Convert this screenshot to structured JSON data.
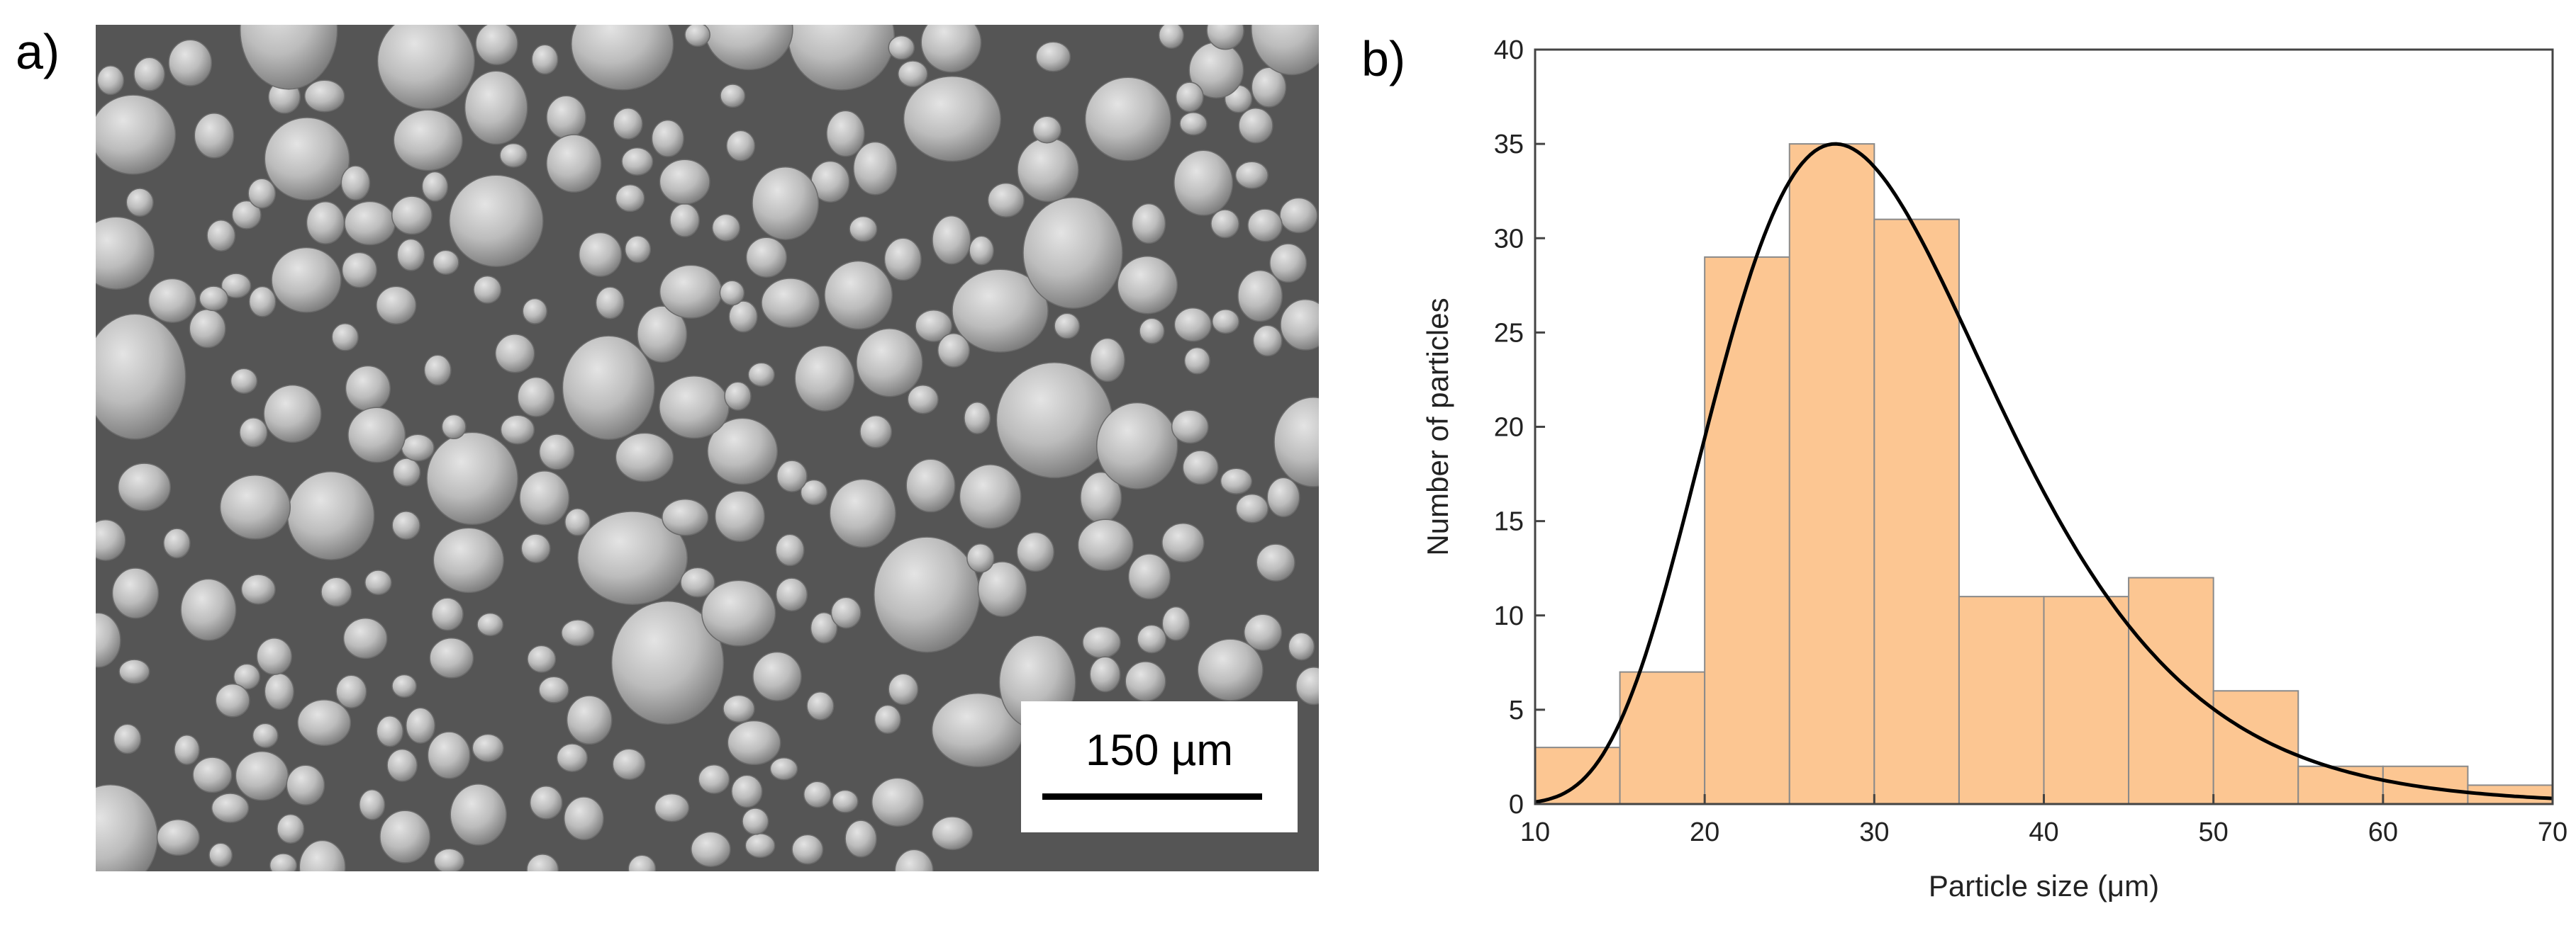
{
  "panels": {
    "a_label": "a)",
    "b_label": "b)"
  },
  "sem": {
    "scale_bar_label": "150 µm",
    "background_color": "#555555",
    "particle_color": "#c8c8c8"
  },
  "chart_data": {
    "type": "bar",
    "title": "",
    "xlabel": "Particle size (μm)",
    "ylabel": "Number of particles",
    "xlim": [
      10,
      70
    ],
    "ylim": [
      0,
      40
    ],
    "x_ticks": [
      10,
      20,
      30,
      40,
      50,
      60,
      70
    ],
    "y_ticks": [
      0,
      5,
      10,
      15,
      20,
      25,
      30,
      35,
      40
    ],
    "bins": [
      {
        "from": 10,
        "to": 15,
        "count": 3
      },
      {
        "from": 15,
        "to": 20,
        "count": 7
      },
      {
        "from": 20,
        "to": 25,
        "count": 29
      },
      {
        "from": 25,
        "to": 30,
        "count": 35
      },
      {
        "from": 30,
        "to": 35,
        "count": 31
      },
      {
        "from": 35,
        "to": 40,
        "count": 11
      },
      {
        "from": 40,
        "to": 45,
        "count": 11
      },
      {
        "from": 45,
        "to": 50,
        "count": 12
      },
      {
        "from": 50,
        "to": 55,
        "count": 6
      },
      {
        "from": 55,
        "to": 60,
        "count": 2
      },
      {
        "from": 60,
        "to": 65,
        "count": 2
      },
      {
        "from": 65,
        "to": 70,
        "count": 1
      }
    ],
    "fit_curve": {
      "type": "lognormal",
      "peak_x": 27.7,
      "peak_y": 35,
      "sigma": 0.3,
      "color": "#000000"
    },
    "bar_color": "#fcc692",
    "bar_edge_color": "#8a8a8a",
    "grid": false
  }
}
